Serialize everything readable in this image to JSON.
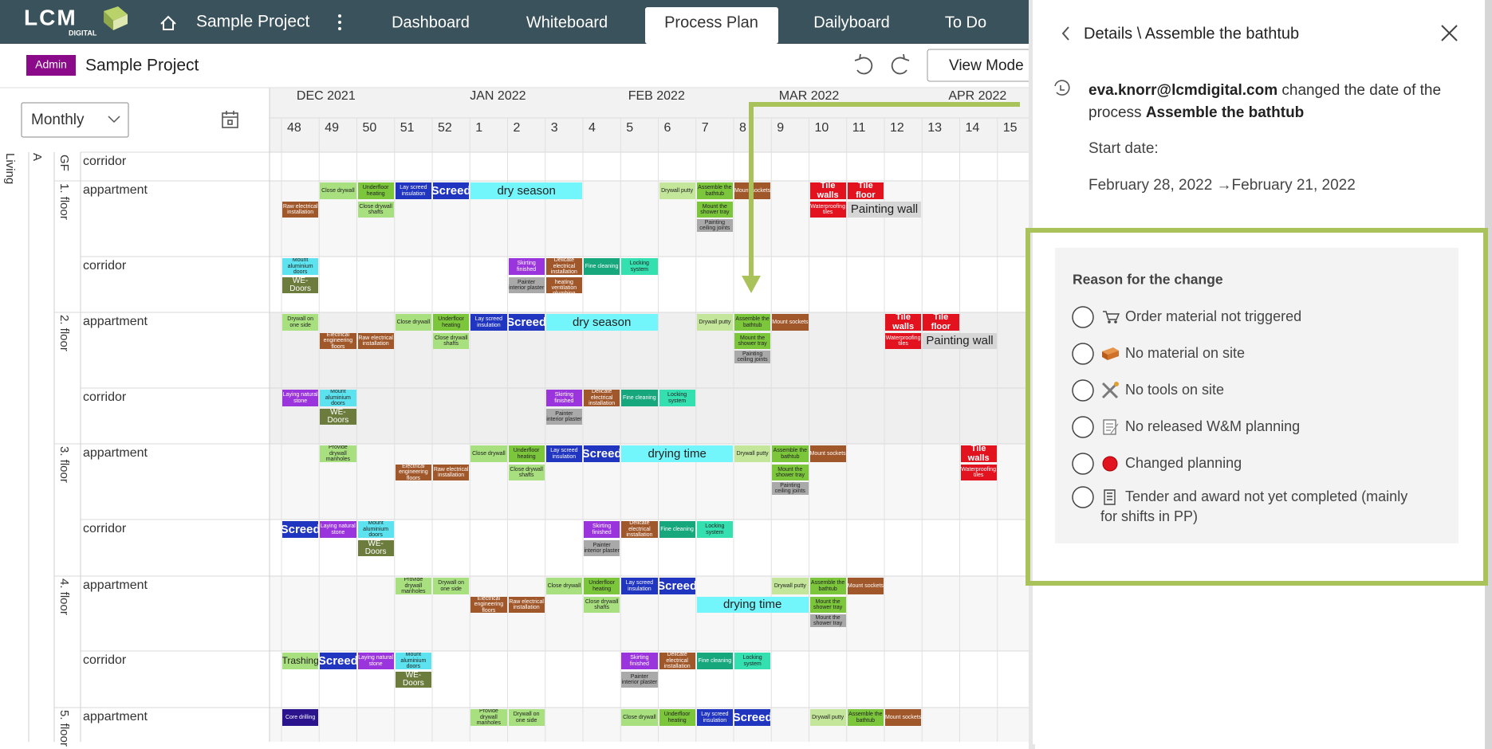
{
  "header": {
    "logo": "LCM",
    "logo_sub": "DIGITAL",
    "project": "Sample Project",
    "nav": [
      "Dashboard",
      "Whiteboard",
      "Process Plan",
      "Dailyboard",
      "To Do"
    ]
  },
  "toolbar": {
    "badge": "Admin",
    "project": "Sample Project",
    "button": "View Mode"
  },
  "gantt": {
    "view": "Monthly",
    "months": [
      "DEC 2021",
      "JAN 2022",
      "FEB 2022",
      "MAR 2022",
      "APR 2022"
    ],
    "weeks": [
      "48",
      "49",
      "50",
      "51",
      "52",
      "1",
      "2",
      "3",
      "4",
      "5",
      "6",
      "7",
      "8",
      "9",
      "10",
      "11",
      "12",
      "13",
      "14",
      "15"
    ],
    "building": "Living",
    "section": "A",
    "floors": [
      "GF",
      "1. floor",
      "2. floor",
      "3. floor",
      "4. floor",
      "5. floor"
    ],
    "rows": [
      {
        "label": "corridor",
        "tasks": []
      },
      {
        "label": "appartment",
        "tasks": [
          "Close drywall",
          "Underfloor heating",
          "Lay screed insulation",
          "Screed",
          "dry season",
          "Drywall putty",
          "Assemble the bathtub",
          "Mount sockets",
          "Tile walls",
          "Tile floor",
          "Raw electrical installation",
          "Close drywall shafts",
          "Mount the shower tray",
          "Painting ceiling joints",
          "Waterproofing tiles",
          "Painting wall"
        ]
      },
      {
        "label": "corridor",
        "tasks": [
          "Mount aluminium doors",
          "WE-Doors",
          "Skirting finished",
          "Delicate electrical installation",
          "Fine cleaning",
          "Locking system",
          "Painter interior plaster",
          "Delicate heating ventilation plumbing"
        ]
      },
      {
        "label": "appartment",
        "tasks": [
          "Drywall on one side",
          "Electrical engineering floors",
          "Raw electrical installation",
          "Close drywall",
          "Underfloor heating",
          "Close drywall shafts",
          "Lay screed insulation",
          "Screed",
          "dry season",
          "Drywall putty",
          "Assemble the bathtub",
          "Mount the shower tray",
          "Painting ceiling joints",
          "Mount sockets",
          "Tile walls",
          "Waterproofing tiles",
          "Tile floor",
          "Painting wall"
        ]
      },
      {
        "label": "corridor",
        "tasks": [
          "Laying natural stone",
          "Mount aluminium doors",
          "WE-Doors",
          "Skirting finished",
          "Delicate electrical installation",
          "Fine cleaning",
          "Locking system",
          "Painter interior plaster"
        ]
      },
      {
        "label": "appartment",
        "tasks": [
          "Provide drywall manholes",
          "Electrical engineering floors",
          "Raw electrical installation",
          "Close drywall",
          "Underfloor heating",
          "Close drywall shafts",
          "Lay screed insulation",
          "Screed",
          "drying time",
          "Drywall putty",
          "Assemble the bathtub",
          "Mount the shower tray",
          "Painting ceiling joints",
          "Mount sockets",
          "Tile walls",
          "Waterproofing tiles"
        ]
      },
      {
        "label": "corridor",
        "tasks": [
          "Screed",
          "Laying natural stone",
          "Mount aluminium doors",
          "WE-Doors",
          "Skirting finished",
          "Delicate electrical installation",
          "Fine cleaning",
          "Locking system",
          "Painter interior plaster"
        ]
      },
      {
        "label": "appartment",
        "tasks": [
          "Provide drywall manholes",
          "Drywall on one side",
          "Electrical engineering floors",
          "Raw electrical installation",
          "Close drywall",
          "Underfloor heating",
          "Close drywall shafts",
          "Lay screed insulation",
          "Screed",
          "drying time",
          "Drywall putty",
          "Assemble the bathtub",
          "Mount the shower tray",
          "Mount the shower tray",
          "Mount sockets"
        ]
      },
      {
        "label": "corridor",
        "tasks": [
          "Trashing",
          "Screed",
          "Laying natural stone",
          "Mount aluminium doors",
          "WE-Doors",
          "Skirting finished",
          "Delicate electrical installation",
          "Fine cleaning",
          "Locking system",
          "Painter interior plaster"
        ]
      },
      {
        "label": "appartment",
        "tasks": [
          "Core drilling",
          "Provide drywall manholes",
          "Drywall on one side",
          "Close drywall",
          "Underfloor heating",
          "Lay screed insulation",
          "Screed",
          "Drywall putty",
          "Assemble the bathtub",
          "Mount sockets"
        ]
      }
    ]
  },
  "details": {
    "title": "Details \\ Assemble the bathtub",
    "user": "eva.knorr@lcmdigital.com",
    "action": "changed the date of the",
    "action2": "process",
    "process": "Assemble the bathtub",
    "start_label": "Start date:",
    "date_change": "February 28, 2022 →February 21, 2022"
  },
  "reason": {
    "title": "Reason for the change",
    "options": [
      [
        "Order material not triggered"
      ],
      [
        "No material on site"
      ],
      [
        "No tools on site"
      ],
      [
        "No released W&M planning"
      ],
      [
        "Changed planning"
      ],
      [
        "Tender and award not yet completed (mainly",
        "for shifts in PP)"
      ]
    ]
  }
}
